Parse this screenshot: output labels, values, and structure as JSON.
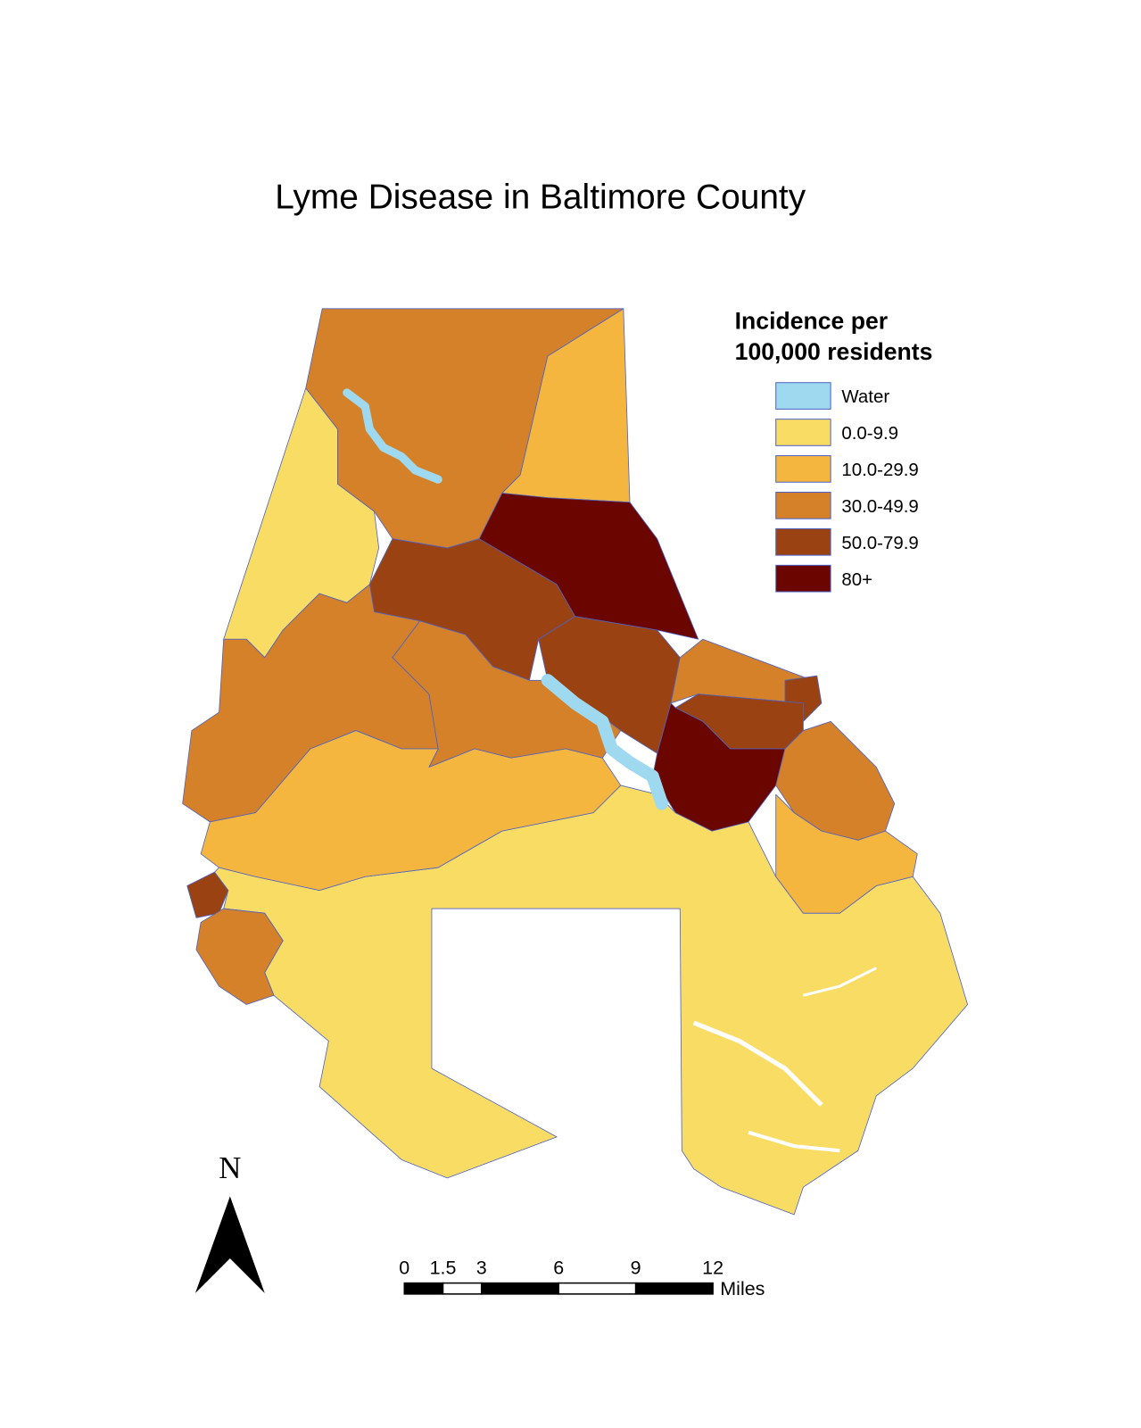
{
  "title": "Lyme Disease in Baltimore County",
  "legend": {
    "title": [
      "Incidence per",
      "100,000 residents"
    ],
    "items": [
      {
        "label": "Water",
        "color": "#9fd9f0"
      },
      {
        "label": "0.0-9.9",
        "color": "#f9dc64"
      },
      {
        "label": "10.0-29.9",
        "color": "#f5b640"
      },
      {
        "label": "30.0-49.9",
        "color": "#d4812a"
      },
      {
        "label": "50.0-79.9",
        "color": "#9a4212"
      },
      {
        "label": "80+",
        "color": "#6b0500"
      }
    ]
  },
  "north_arrow": "N",
  "scale_bar": {
    "ticks": [
      0,
      1.5,
      3,
      6,
      9,
      12
    ],
    "unit": "Miles"
  }
}
